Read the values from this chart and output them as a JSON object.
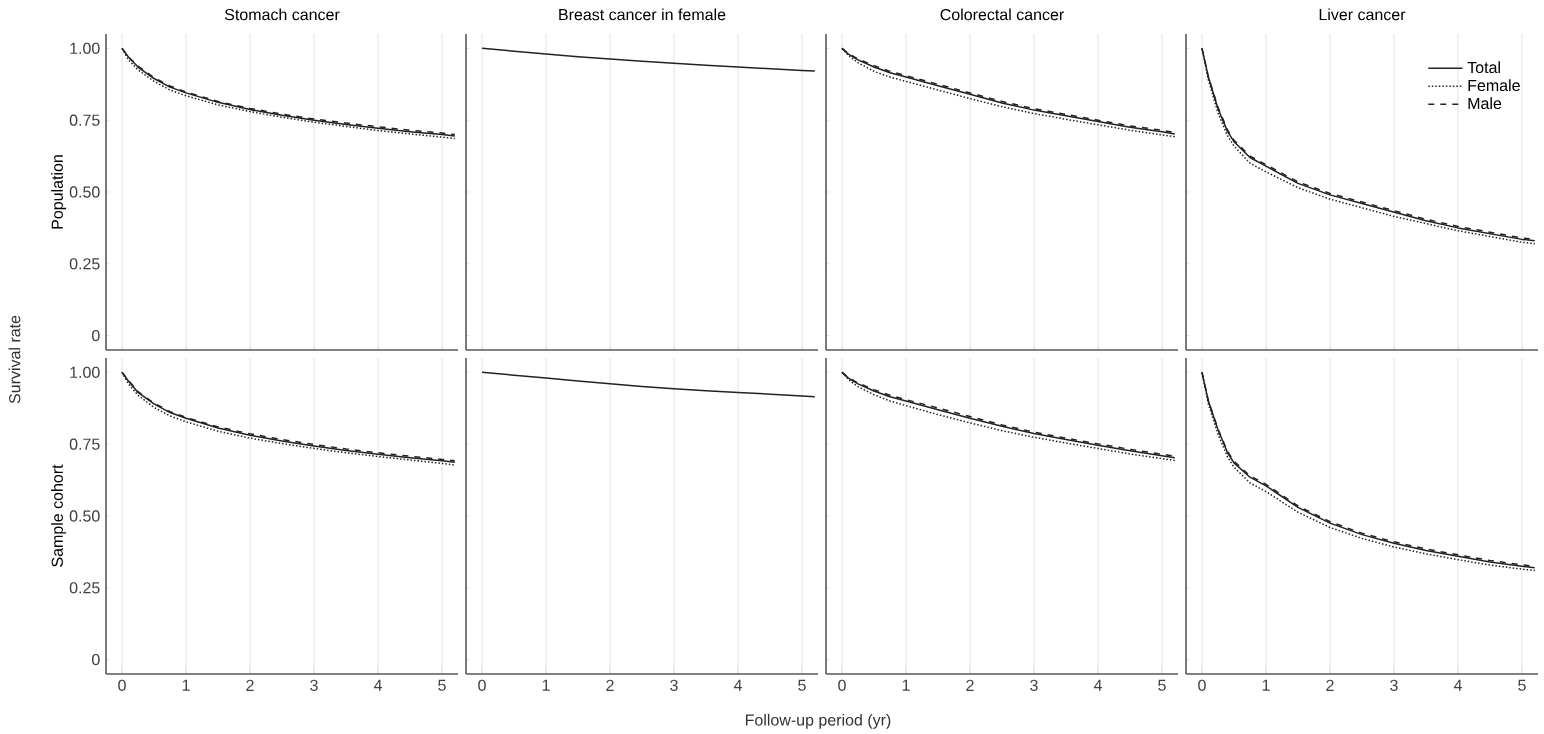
{
  "chart_data": [
    {
      "type": "line",
      "title": "Stomach cancer",
      "ylabel": "Population",
      "annotations": [
        "Survival rate"
      ],
      "tick_labels": "y",
      "grid": "x",
      "xlim": [
        -0.25,
        5.25
      ],
      "ylim": [
        -0.05,
        1.05
      ],
      "xticks": [
        0,
        1,
        2,
        3,
        4,
        5
      ],
      "yticks": [
        0,
        {
          "value": 0.25,
          "label": "0.25"
        },
        {
          "value": 0.5,
          "label": "0.50"
        },
        {
          "value": 0.75,
          "label": "0.75"
        },
        {
          "value": 1,
          "label": "1.00"
        }
      ],
      "x": [
        0,
        0.1,
        0.25,
        0.5,
        0.75,
        1,
        1.5,
        2,
        2.5,
        3,
        3.5,
        4,
        4.5,
        5,
        5.2
      ],
      "series": [
        {
          "color": "#222222",
          "line_style": "solid",
          "values": [
            1.0,
            0.97,
            0.935,
            0.895,
            0.865,
            0.845,
            0.812,
            0.787,
            0.767,
            0.75,
            0.735,
            0.722,
            0.71,
            0.7,
            0.695
          ]
        },
        {
          "color": "#222222",
          "line_style": "dotted",
          "values": [
            1.0,
            0.96,
            0.925,
            0.885,
            0.855,
            0.835,
            0.803,
            0.78,
            0.76,
            0.743,
            0.728,
            0.714,
            0.702,
            0.691,
            0.686
          ]
        },
        {
          "color": "#222222",
          "line_style": "dashed",
          "values": [
            1.0,
            0.97,
            0.938,
            0.898,
            0.869,
            0.848,
            0.815,
            0.791,
            0.771,
            0.754,
            0.74,
            0.727,
            0.715,
            0.705,
            0.7
          ]
        }
      ]
    },
    {
      "type": "line",
      "title": "Breast cancer in female",
      "tick_labels": false,
      "grid": "x",
      "xlim": [
        -0.25,
        5.25
      ],
      "ylim": [
        -0.05,
        1.05
      ],
      "xticks": [
        0,
        1,
        2,
        3,
        4,
        5
      ],
      "yticks": [
        0,
        0.25,
        0.5,
        0.75,
        1
      ],
      "x": [
        0,
        0.5,
        1,
        1.5,
        2,
        2.5,
        3,
        3.5,
        4,
        4.5,
        5,
        5.2
      ],
      "series": [
        {
          "color": "#222222",
          "line_style": "solid",
          "values": [
            1.0,
            0.99,
            0.98,
            0.971,
            0.963,
            0.955,
            0.948,
            0.941,
            0.935,
            0.929,
            0.923,
            0.921
          ]
        }
      ]
    },
    {
      "type": "line",
      "title": "Colorectal cancer",
      "tick_labels": false,
      "grid": "x",
      "xlim": [
        -0.25,
        5.25
      ],
      "ylim": [
        -0.05,
        1.05
      ],
      "xticks": [
        0,
        1,
        2,
        3,
        4,
        5
      ],
      "yticks": [
        0,
        0.25,
        0.5,
        0.75,
        1
      ],
      "x": [
        0,
        0.1,
        0.25,
        0.5,
        0.75,
        1,
        1.5,
        2,
        2.5,
        3,
        3.5,
        4,
        4.5,
        5,
        5.2
      ],
      "series": [
        {
          "color": "#222222",
          "line_style": "solid",
          "values": [
            1.0,
            0.98,
            0.96,
            0.935,
            0.915,
            0.9,
            0.87,
            0.84,
            0.81,
            0.785,
            0.765,
            0.745,
            0.725,
            0.71,
            0.702
          ]
        },
        {
          "color": "#222222",
          "line_style": "dotted",
          "values": [
            1.0,
            0.975,
            0.95,
            0.92,
            0.9,
            0.885,
            0.855,
            0.825,
            0.797,
            0.773,
            0.753,
            0.734,
            0.715,
            0.699,
            0.692
          ]
        },
        {
          "color": "#222222",
          "line_style": "dashed",
          "values": [
            1.0,
            0.982,
            0.963,
            0.94,
            0.92,
            0.905,
            0.875,
            0.845,
            0.815,
            0.79,
            0.77,
            0.75,
            0.73,
            0.715,
            0.707
          ]
        }
      ]
    },
    {
      "type": "line",
      "title": "Liver cancer",
      "tick_labels": false,
      "grid": "x",
      "legend": "top right",
      "xlim": [
        -0.25,
        5.25
      ],
      "ylim": [
        -0.05,
        1.05
      ],
      "xticks": [
        0,
        1,
        2,
        3,
        4,
        5
      ],
      "yticks": [
        0,
        0.25,
        0.5,
        0.75,
        1
      ],
      "x": [
        0,
        0.1,
        0.25,
        0.4,
        0.5,
        0.75,
        1,
        1.5,
        2,
        2.5,
        3,
        3.5,
        4,
        4.5,
        5,
        5.2
      ],
      "series": [
        {
          "name": "Total",
          "color": "#222222",
          "line_style": "solid",
          "values": [
            1.0,
            0.9,
            0.79,
            0.71,
            0.675,
            0.62,
            0.59,
            0.53,
            0.49,
            0.46,
            0.43,
            0.4,
            0.375,
            0.355,
            0.335,
            0.33
          ]
        },
        {
          "name": "Female",
          "color": "#222222",
          "line_style": "dotted",
          "values": [
            1.0,
            0.89,
            0.775,
            0.695,
            0.66,
            0.6,
            0.57,
            0.515,
            0.475,
            0.445,
            0.415,
            0.39,
            0.365,
            0.345,
            0.325,
            0.32
          ]
        },
        {
          "name": "Male",
          "color": "#222222",
          "line_style": "dashed",
          "values": [
            1.0,
            0.9,
            0.795,
            0.715,
            0.68,
            0.625,
            0.595,
            0.535,
            0.495,
            0.465,
            0.435,
            0.405,
            0.38,
            0.36,
            0.34,
            0.335
          ]
        }
      ]
    },
    {
      "type": "line",
      "ylabel": "Sample cohort",
      "grid": "x",
      "xlim": [
        -0.25,
        5.25
      ],
      "ylim": [
        -0.05,
        1.05
      ],
      "xticks": [
        0,
        1,
        2,
        3,
        4,
        5
      ],
      "yticks": [
        0,
        {
          "value": 0.25,
          "label": "0.25"
        },
        {
          "value": 0.5,
          "label": "0.50"
        },
        {
          "value": 0.75,
          "label": "0.75"
        },
        {
          "value": 1,
          "label": "1.00"
        }
      ],
      "x": [
        0,
        0.1,
        0.25,
        0.5,
        0.75,
        1,
        1.5,
        2,
        2.5,
        3,
        3.5,
        4,
        4.5,
        5,
        5.2
      ],
      "series": [
        {
          "color": "#222222",
          "line_style": "solid",
          "values": [
            1.0,
            0.97,
            0.93,
            0.89,
            0.86,
            0.84,
            0.806,
            0.781,
            0.761,
            0.744,
            0.728,
            0.715,
            0.703,
            0.692,
            0.687
          ]
        },
        {
          "color": "#222222",
          "line_style": "dotted",
          "values": [
            1.0,
            0.96,
            0.92,
            0.878,
            0.848,
            0.828,
            0.795,
            0.771,
            0.752,
            0.735,
            0.72,
            0.707,
            0.695,
            0.683,
            0.677
          ]
        },
        {
          "color": "#222222",
          "line_style": "dashed",
          "values": [
            1.0,
            0.972,
            0.933,
            0.893,
            0.863,
            0.843,
            0.81,
            0.786,
            0.766,
            0.749,
            0.733,
            0.72,
            0.708,
            0.697,
            0.692
          ]
        }
      ]
    },
    {
      "type": "line",
      "annotations": [
        "Follow-up period (yr)"
      ],
      "tick_labels": "x",
      "grid": "x",
      "xlim": [
        -0.25,
        5.25
      ],
      "ylim": [
        -0.05,
        1.05
      ],
      "xticks": [
        0,
        1,
        2,
        3,
        4,
        5
      ],
      "yticks": [
        0,
        0.25,
        0.5,
        0.75,
        1
      ],
      "x": [
        0,
        0.5,
        1,
        1.5,
        2,
        2.5,
        3,
        3.5,
        4,
        4.5,
        5,
        5.2
      ],
      "series": [
        {
          "color": "#222222",
          "line_style": "solid",
          "values": [
            1.0,
            0.99,
            0.98,
            0.97,
            0.96,
            0.951,
            0.943,
            0.936,
            0.93,
            0.924,
            0.918,
            0.915
          ]
        }
      ]
    },
    {
      "type": "line",
      "tick_labels": "x",
      "grid": "x",
      "xlim": [
        -0.25,
        5.25
      ],
      "ylim": [
        -0.05,
        1.05
      ],
      "xticks": [
        0,
        1,
        2,
        3,
        4,
        5
      ],
      "yticks": [
        0,
        0.25,
        0.5,
        0.75,
        1
      ],
      "x": [
        0,
        0.1,
        0.25,
        0.5,
        0.75,
        1,
        1.5,
        2,
        2.5,
        3,
        3.5,
        4,
        4.5,
        5,
        5.2
      ],
      "series": [
        {
          "color": "#222222",
          "line_style": "solid",
          "values": [
            1.0,
            0.98,
            0.96,
            0.935,
            0.915,
            0.9,
            0.87,
            0.84,
            0.812,
            0.787,
            0.766,
            0.746,
            0.727,
            0.71,
            0.703
          ]
        },
        {
          "color": "#222222",
          "line_style": "dotted",
          "values": [
            1.0,
            0.975,
            0.95,
            0.922,
            0.9,
            0.884,
            0.853,
            0.824,
            0.797,
            0.774,
            0.754,
            0.735,
            0.716,
            0.7,
            0.693
          ]
        },
        {
          "color": "#222222",
          "line_style": "dashed",
          "values": [
            1.0,
            0.982,
            0.963,
            0.94,
            0.92,
            0.905,
            0.876,
            0.846,
            0.817,
            0.792,
            0.771,
            0.751,
            0.732,
            0.715,
            0.708
          ]
        }
      ]
    },
    {
      "type": "line",
      "tick_labels": "x",
      "grid": "x",
      "xlim": [
        -0.25,
        5.25
      ],
      "ylim": [
        -0.05,
        1.05
      ],
      "xticks": [
        0,
        1,
        2,
        3,
        4,
        5
      ],
      "yticks": [
        0,
        0.25,
        0.5,
        0.75,
        1
      ],
      "x": [
        0,
        0.1,
        0.25,
        0.4,
        0.5,
        0.75,
        1,
        1.5,
        2,
        2.5,
        3,
        3.5,
        4,
        4.5,
        5,
        5.2
      ],
      "series": [
        {
          "color": "#222222",
          "line_style": "solid",
          "values": [
            1.0,
            0.9,
            0.8,
            0.72,
            0.685,
            0.635,
            0.605,
            0.53,
            0.475,
            0.435,
            0.405,
            0.38,
            0.36,
            0.34,
            0.325,
            0.32
          ]
        },
        {
          "color": "#222222",
          "line_style": "dotted",
          "values": [
            1.0,
            0.89,
            0.785,
            0.705,
            0.67,
            0.615,
            0.585,
            0.513,
            0.46,
            0.422,
            0.392,
            0.368,
            0.348,
            0.329,
            0.315,
            0.31
          ]
        },
        {
          "color": "#222222",
          "line_style": "dashed",
          "values": [
            1.0,
            0.9,
            0.803,
            0.724,
            0.69,
            0.64,
            0.61,
            0.535,
            0.48,
            0.44,
            0.41,
            0.385,
            0.365,
            0.345,
            0.33,
            0.325
          ]
        }
      ]
    }
  ]
}
